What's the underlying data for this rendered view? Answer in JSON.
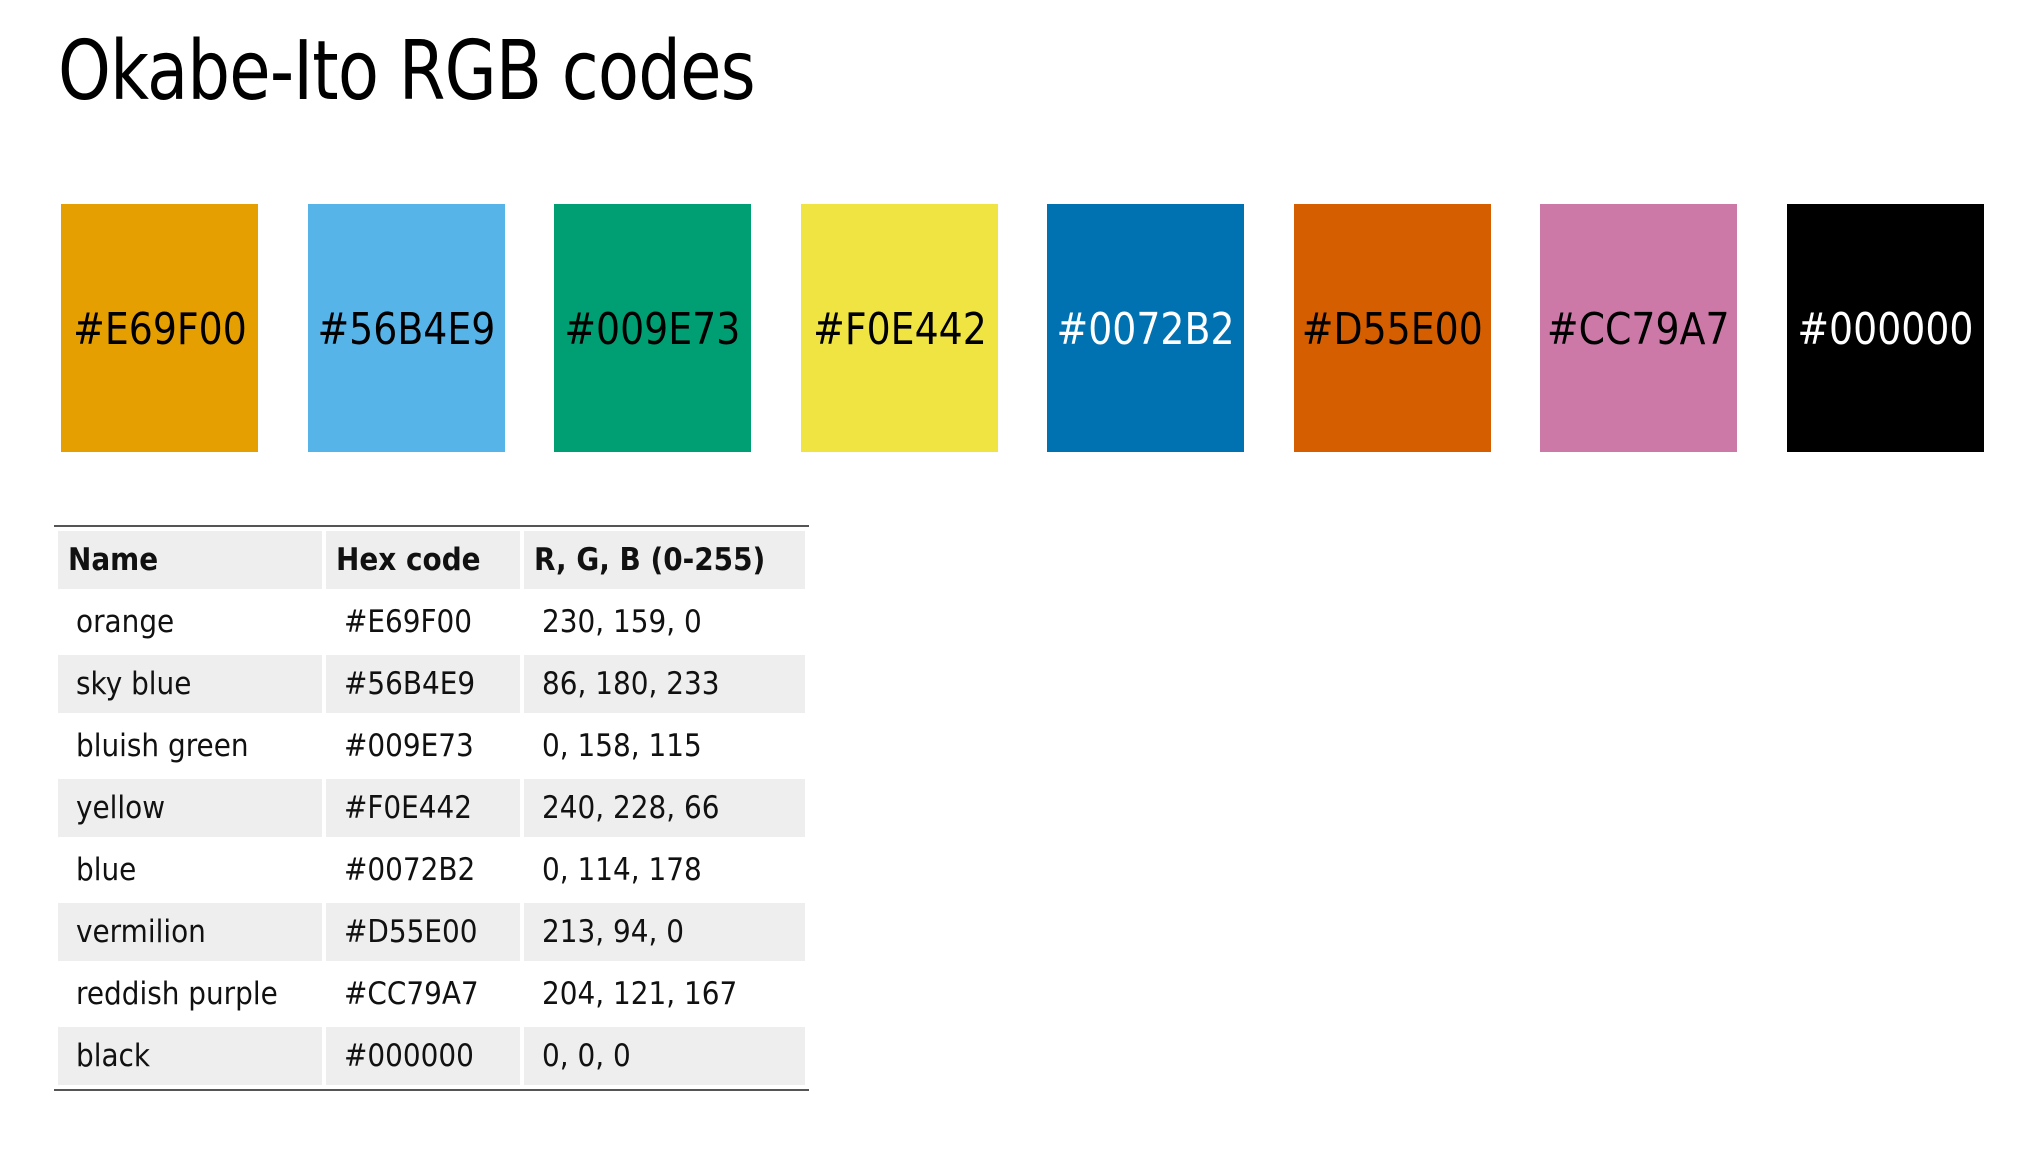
{
  "title": "Okabe-Ito RGB codes",
  "swatches": [
    {
      "label": "#E69F00",
      "bg": "#E69F00",
      "fg": "#000000"
    },
    {
      "label": "#56B4E9",
      "bg": "#56B4E9",
      "fg": "#000000"
    },
    {
      "label": "#009E73",
      "bg": "#009E73",
      "fg": "#000000"
    },
    {
      "label": "#F0E442",
      "bg": "#F0E442",
      "fg": "#000000"
    },
    {
      "label": "#0072B2",
      "bg": "#0072B2",
      "fg": "#ffffff"
    },
    {
      "label": "#D55E00",
      "bg": "#D55E00",
      "fg": "#000000"
    },
    {
      "label": "#CC79A7",
      "bg": "#CC79A7",
      "fg": "#000000"
    },
    {
      "label": "#000000",
      "bg": "#000000",
      "fg": "#ffffff"
    }
  ],
  "table": {
    "headers": [
      "Name",
      "Hex code",
      "R, G, B (0-255)"
    ],
    "rows": [
      [
        "orange",
        "#E69F00",
        "230, 159, 0"
      ],
      [
        "sky blue",
        "#56B4E9",
        "86, 180, 233"
      ],
      [
        "bluish green",
        "#009E73",
        "0, 158, 115"
      ],
      [
        "yellow",
        "#F0E442",
        "240, 228, 66"
      ],
      [
        "blue",
        "#0072B2",
        "0, 114, 178"
      ],
      [
        "vermilion",
        "#D55E00",
        "213, 94, 0"
      ],
      [
        "reddish purple",
        "#CC79A7",
        "204, 121, 167"
      ],
      [
        "black",
        "#000000",
        "0, 0, 0"
      ]
    ]
  }
}
